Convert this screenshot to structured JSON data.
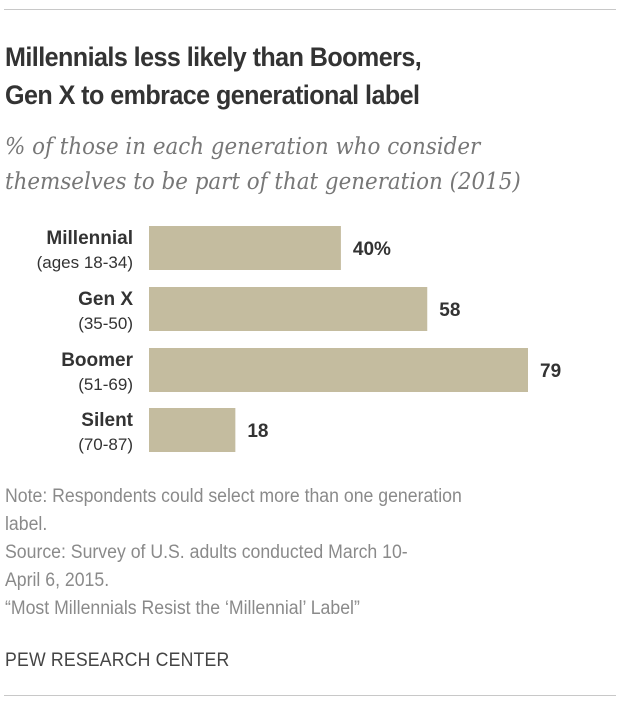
{
  "chart_data": {
    "type": "bar",
    "orientation": "horizontal",
    "title": "Millennials less likely than Boomers, Gen X to embrace generational label",
    "title_lines": [
      "Millennials less likely than Boomers,",
      "Gen X to embrace generational label"
    ],
    "subtitle_lines": [
      "% of those in each generation who consider",
      "themselves to be part of that generation (2015)"
    ],
    "categories": [
      "Millennial",
      "Gen X",
      "Boomer",
      "Silent"
    ],
    "category_sublabels": [
      "(ages 18-34)",
      "(35-50)",
      "(51-69)",
      "(70-87)"
    ],
    "values": [
      40,
      58,
      79,
      18
    ],
    "value_labels": [
      "40%",
      "58",
      "79",
      "18"
    ],
    "unit": "%",
    "xlabel": "",
    "ylabel": "",
    "xlim": [
      0,
      79
    ],
    "grid": false,
    "legend": "none",
    "bar_color": "#c4bc9f"
  },
  "footer": {
    "lines": [
      "Note: Respondents could select more than one generation",
      "label.",
      "Source: Survey of U.S. adults conducted March 10-",
      "April 6, 2015.",
      "“Most Millennials Resist the ‘Millennial’ Label”"
    ],
    "organization": "PEW RESEARCH CENTER"
  },
  "colors": {
    "bar": "#c4bc9f",
    "title": "#333333",
    "subtitle": "#777777",
    "footer": "#8a8a8a",
    "labels": "#333333"
  }
}
